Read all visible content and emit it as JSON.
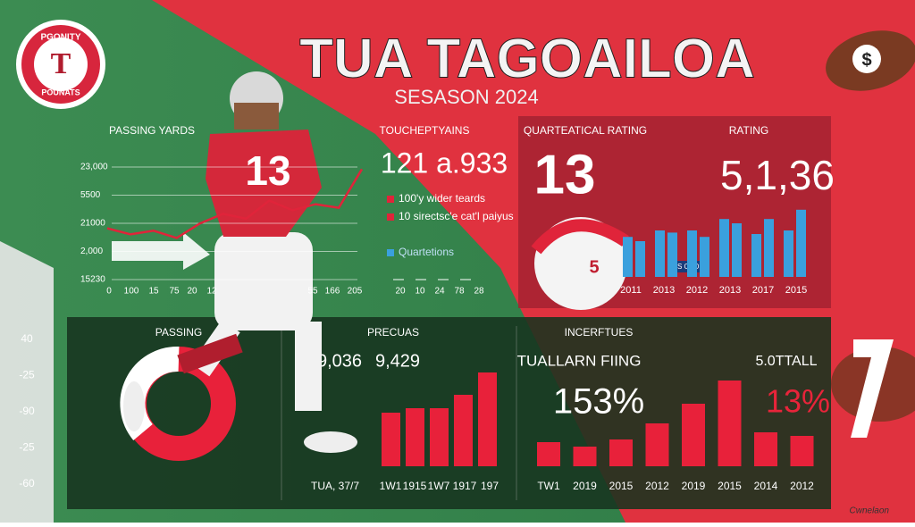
{
  "logo": {
    "top": "PGONITY",
    "letter": "T",
    "bottom": "POUNATS"
  },
  "header": {
    "title": "TUA TAGOAILOA",
    "subtitle": "SESASON 2024"
  },
  "left_axis": [
    "40",
    "-25",
    "-90",
    "-25",
    "-60"
  ],
  "passing_yards": {
    "label": "PASSING YARDS",
    "y_labels": [
      "23,000",
      "5500",
      "21000",
      "2,000",
      "15230"
    ],
    "x_labels": [
      "0",
      "100",
      "15",
      "75",
      "20",
      "12",
      "55",
      "166",
      "205"
    ],
    "line": [
      44,
      39,
      42,
      36,
      48,
      56,
      52,
      67,
      59,
      64,
      61,
      93
    ]
  },
  "touchdowns": {
    "label": "TOUCHEPTYAINS",
    "big": "121 a.933",
    "legend": [
      "100'y wider teards",
      "10 sirectsc'e cat'l paiyus",
      "Quartetions"
    ],
    "x_labels": [
      "20",
      "10",
      "24",
      "78",
      "28"
    ]
  },
  "rating_panel": {
    "label": "QUARTEATICAL RATING",
    "label2": "RATING",
    "big": "13",
    "big2": "5,1,36",
    "tag": "S CADDR",
    "x_labels": [
      "2011",
      "2013",
      "2012",
      "2013",
      "2017",
      "2015"
    ],
    "bars": [
      56,
      50,
      65,
      62,
      65,
      56,
      81,
      75,
      60,
      81,
      65,
      94
    ]
  },
  "player": {
    "jersey": "13",
    "helmet": "5"
  },
  "passing": {
    "label": "PASSING"
  },
  "precuas": {
    "label": "PRECUAS",
    "num1": "9,036",
    "num2": "9,429",
    "x_labels": [
      "TUA, 37/7",
      "1W1",
      "1915",
      "1W7",
      "1917",
      "197"
    ],
    "bars": [
      60,
      65,
      65,
      80,
      105
    ]
  },
  "incerftues": {
    "label": "INCERFTUES",
    "sub": "TUALLARN FIING",
    "sub2": "5.0TTALL",
    "big": "153%",
    "big2": "13%",
    "x_labels": [
      "TW1",
      "2019",
      "2015",
      "2012",
      "2019",
      "2015",
      "2014",
      "2012"
    ],
    "bars": [
      27,
      22,
      30,
      48,
      70,
      96,
      38,
      34
    ]
  },
  "signature": "Cwnelaon"
}
